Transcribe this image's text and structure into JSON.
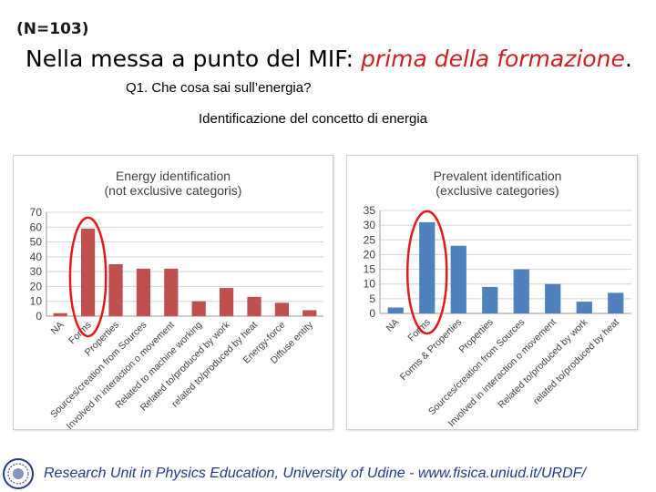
{
  "header": {
    "sample": "(N=103)",
    "title_plain": "Nella messa a punto del MIF: ",
    "title_highlight": "prima della formazione",
    "title_end": ".",
    "question": "Q1. Che cosa sai sull’energia?",
    "subtitle": "Identificazione del concetto di energia"
  },
  "chart_data": [
    {
      "type": "bar",
      "title": "Energy identification",
      "subtitle": "(not exclusive categoris)",
      "categories": [
        "NA",
        "Forms",
        "Properties",
        "Sources/creation from Sources",
        "Involved in interaction o movement",
        "Related to machine working",
        "Related to/produced by work",
        "related to/produced by heat",
        "Energy-force",
        "Diffuse entity"
      ],
      "values": [
        2,
        59,
        35,
        32,
        32,
        10,
        19,
        13,
        9,
        4
      ],
      "ylim": [
        0,
        70
      ],
      "yticks": [
        0,
        10,
        20,
        30,
        40,
        50,
        60,
        70
      ],
      "grid": true,
      "color": "#c0504d"
    },
    {
      "type": "bar",
      "title": "Prevalent identification",
      "subtitle": "(exclusive categories)",
      "categories": [
        "NA",
        "Forms",
        "Forms & Properties",
        "Properties",
        "Sources/creation from Sources",
        "Involved in interaction o movement",
        "Related to/produced by work",
        "related to/produced by heat"
      ],
      "values": [
        2,
        31,
        23,
        9,
        15,
        10,
        4,
        7
      ],
      "ylim": [
        0,
        35
      ],
      "yticks": [
        0,
        5,
        10,
        15,
        20,
        25,
        30,
        35
      ],
      "grid": true,
      "color": "#4f81bd"
    }
  ],
  "footer": {
    "text": "Research Unit in Physics Education, University of Udine - www.fisica.uniud.it/URDF/"
  },
  "colors": {
    "highlight": "#cc1f1f",
    "circle": "#e31a1a",
    "footer": "#1f3a8a"
  }
}
